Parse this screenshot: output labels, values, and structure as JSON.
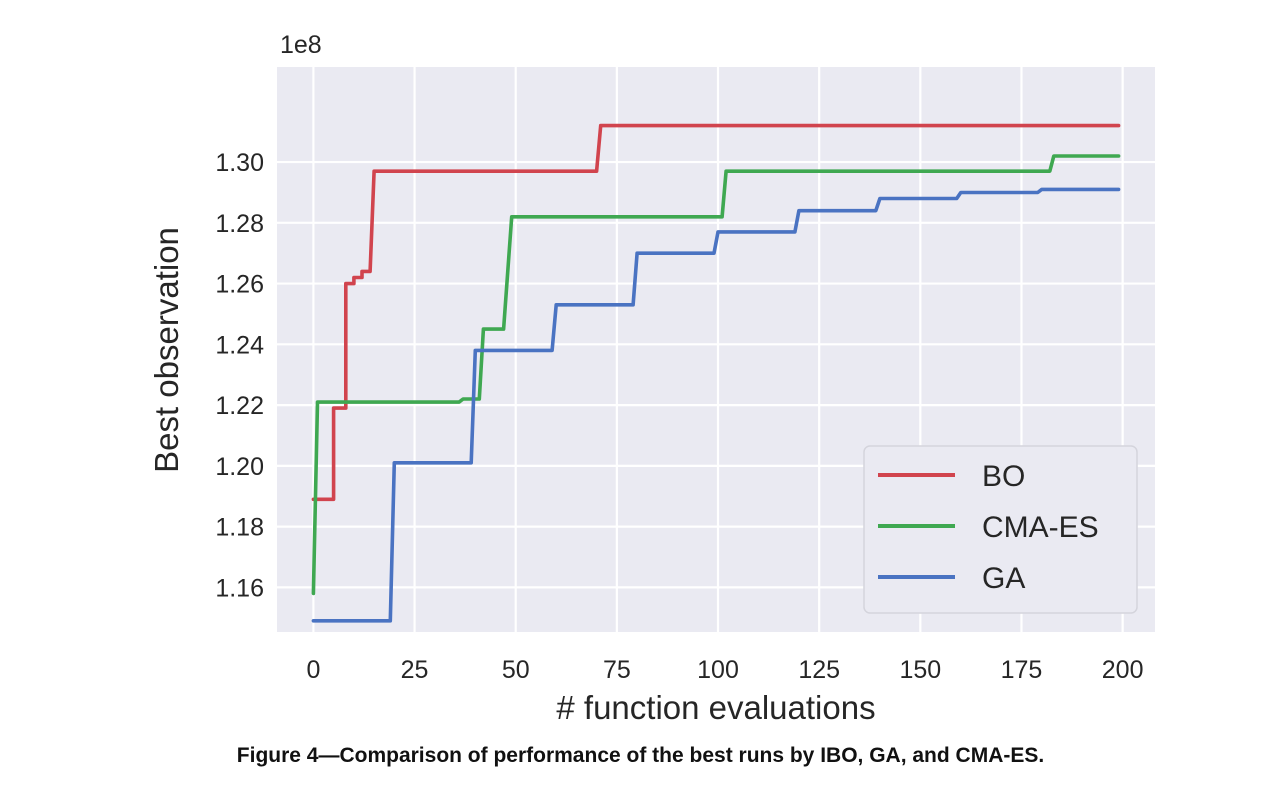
{
  "caption": "Figure 4—Comparison of performance of the best runs by IBO, GA, and CMA-ES.",
  "chart_data": {
    "type": "line",
    "title": "",
    "xlabel": "# function evaluations",
    "ylabel": "Best observation",
    "y_offset_label": "1e8",
    "xlim": [
      -9,
      208
    ],
    "ylim": [
      1.1453,
      1.3313
    ],
    "x_ticks": [
      0,
      25,
      50,
      75,
      100,
      125,
      150,
      175,
      200
    ],
    "y_ticks": [
      1.16,
      1.18,
      1.2,
      1.22,
      1.24,
      1.26,
      1.28,
      1.3
    ],
    "y_tick_labels": [
      "1.16",
      "1.18",
      "1.20",
      "1.22",
      "1.24",
      "1.26",
      "1.28",
      "1.30"
    ],
    "grid": true,
    "legend_position": "lower-right",
    "series": [
      {
        "name": "BO",
        "color": "#d1444e",
        "points": [
          [
            0,
            1.189
          ],
          [
            5,
            1.189
          ],
          [
            5,
            1.219
          ],
          [
            8,
            1.219
          ],
          [
            8,
            1.26
          ],
          [
            10,
            1.26
          ],
          [
            10,
            1.262
          ],
          [
            12,
            1.262
          ],
          [
            12,
            1.264
          ],
          [
            14,
            1.264
          ],
          [
            15,
            1.297
          ],
          [
            70,
            1.297
          ],
          [
            71,
            1.312
          ],
          [
            199,
            1.312
          ]
        ]
      },
      {
        "name": "CMA-ES",
        "color": "#3fa851",
        "points": [
          [
            0,
            1.158
          ],
          [
            1,
            1.221
          ],
          [
            36,
            1.221
          ],
          [
            37,
            1.222
          ],
          [
            41,
            1.222
          ],
          [
            42,
            1.245
          ],
          [
            47,
            1.245
          ],
          [
            49,
            1.282
          ],
          [
            101,
            1.282
          ],
          [
            102,
            1.297
          ],
          [
            182,
            1.297
          ],
          [
            183,
            1.302
          ],
          [
            199,
            1.302
          ]
        ]
      },
      {
        "name": "GA",
        "color": "#4a73c2",
        "points": [
          [
            0,
            1.149
          ],
          [
            19,
            1.149
          ],
          [
            20,
            1.201
          ],
          [
            39,
            1.201
          ],
          [
            40,
            1.238
          ],
          [
            59,
            1.238
          ],
          [
            60,
            1.253
          ],
          [
            79,
            1.253
          ],
          [
            80,
            1.27
          ],
          [
            99,
            1.27
          ],
          [
            100,
            1.277
          ],
          [
            119,
            1.277
          ],
          [
            120,
            1.284
          ],
          [
            139,
            1.284
          ],
          [
            140,
            1.288
          ],
          [
            159,
            1.288
          ],
          [
            160,
            1.29
          ],
          [
            179,
            1.29
          ],
          [
            180,
            1.291
          ],
          [
            199,
            1.291
          ]
        ]
      }
    ]
  }
}
